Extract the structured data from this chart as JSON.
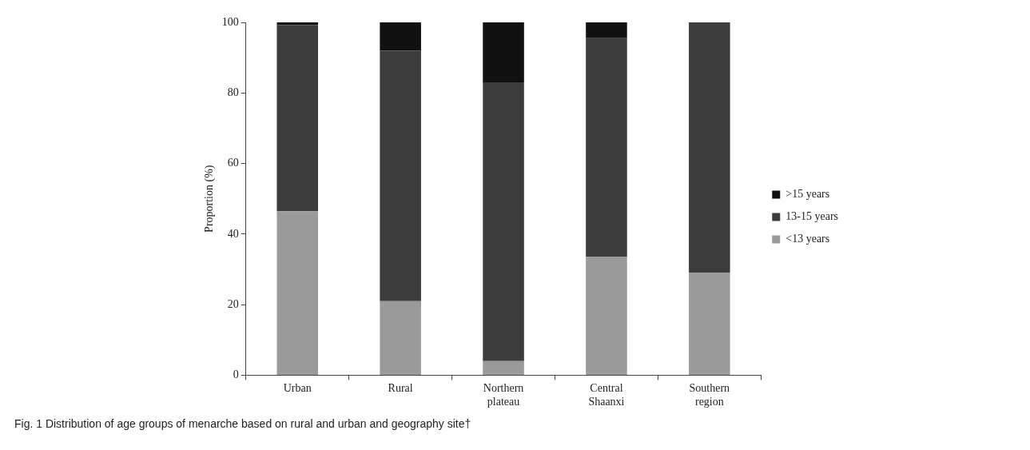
{
  "chart_data": {
    "type": "bar",
    "stacked": true,
    "ylabel": "Proportion (%)",
    "categories": [
      "Urban",
      "Rural",
      "Northern plateau",
      "Central Shaanxi",
      "Southern region"
    ],
    "series": [
      {
        "name": "<13 years",
        "color": "#9a9a9a",
        "values": [
          46.5,
          21,
          4,
          33.5,
          29
        ]
      },
      {
        "name": "13-15 years",
        "color": "#3c3c3c",
        "values": [
          52.7,
          71,
          79,
          62,
          71
        ]
      },
      {
        "name": ">15 years",
        "color": "#111111",
        "values": [
          0.8,
          8,
          17,
          4.5,
          0
        ]
      }
    ],
    "ylim": [
      0,
      100
    ],
    "yticks": [
      0,
      20,
      40,
      60,
      80,
      100
    ],
    "grid": false,
    "legend": "right",
    "annotations": [
      "Fig. 1 Distribution of age groups of menarche based on rural and urban and geography site†"
    ]
  }
}
